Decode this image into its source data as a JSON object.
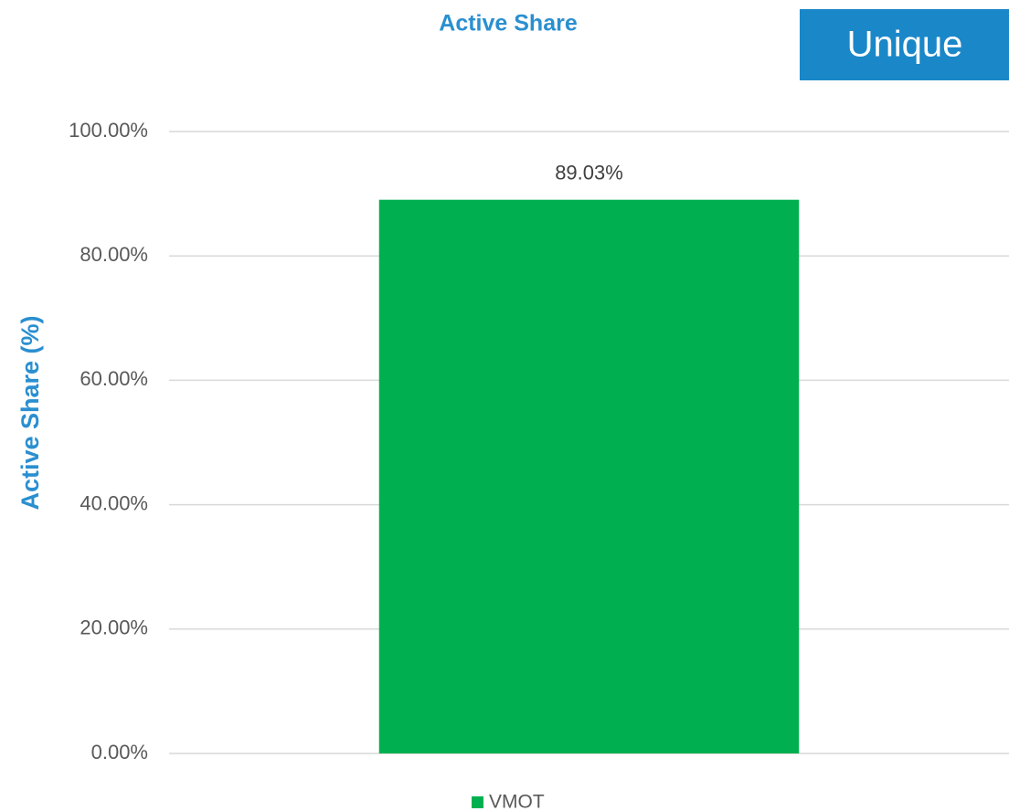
{
  "chart_data": {
    "type": "bar",
    "title": "Active Share",
    "badge": "Unique",
    "y_label": "Active Share (%)",
    "categories": [
      null
    ],
    "series": [
      {
        "name": "VMOT",
        "color": "#00b050",
        "values": [
          89.03
        ],
        "value_labels": [
          "89.03%"
        ]
      }
    ],
    "ylim": [
      0,
      100
    ],
    "yticks": [
      {
        "value": 0,
        "label": "0.00%"
      },
      {
        "value": 20,
        "label": "20.00%"
      },
      {
        "value": 40,
        "label": "40.00%"
      },
      {
        "value": 60,
        "label": "60.00%"
      },
      {
        "value": 80,
        "label": "80.00%"
      },
      {
        "value": 100,
        "label": "100.00%"
      }
    ],
    "grid": true,
    "legend": "bottom"
  }
}
